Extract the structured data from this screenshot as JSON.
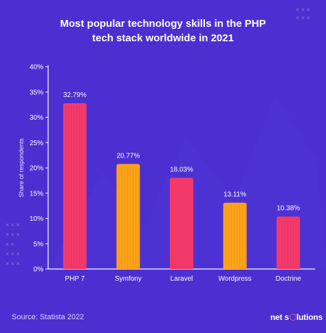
{
  "title_line1": "Most popular technology skills in the PHP",
  "title_line2": "tech stack worldwide in 2021",
  "source": "Source: Statista 2022",
  "brand": {
    "before": "net s",
    "after": "lutions"
  },
  "colors": {
    "background": "#4b2fd0",
    "bar_pink": "#f53a6b",
    "bar_orange": "#ffa318",
    "text": "#ffffff"
  },
  "chart_data": {
    "type": "bar",
    "categories": [
      "PHP 7",
      "Symfony",
      "Laravel",
      "Wordpress",
      "Doctrine"
    ],
    "values": [
      32.79,
      20.77,
      18.03,
      13.11,
      10.38
    ],
    "value_labels": [
      "32.79%",
      "20.77%",
      "18.03%",
      "13.11%",
      "10.38%"
    ],
    "bar_colors": [
      "#f53a6b",
      "#ffa318",
      "#f53a6b",
      "#ffa318",
      "#f53a6b"
    ],
    "ylabel": "Share of respondents",
    "xlabel": "",
    "ylim": [
      0,
      40
    ],
    "yticks": [
      "0%",
      "5%",
      "10%",
      "15%",
      "20%",
      "25%",
      "30%",
      "35%",
      "40%"
    ],
    "grid": false
  }
}
